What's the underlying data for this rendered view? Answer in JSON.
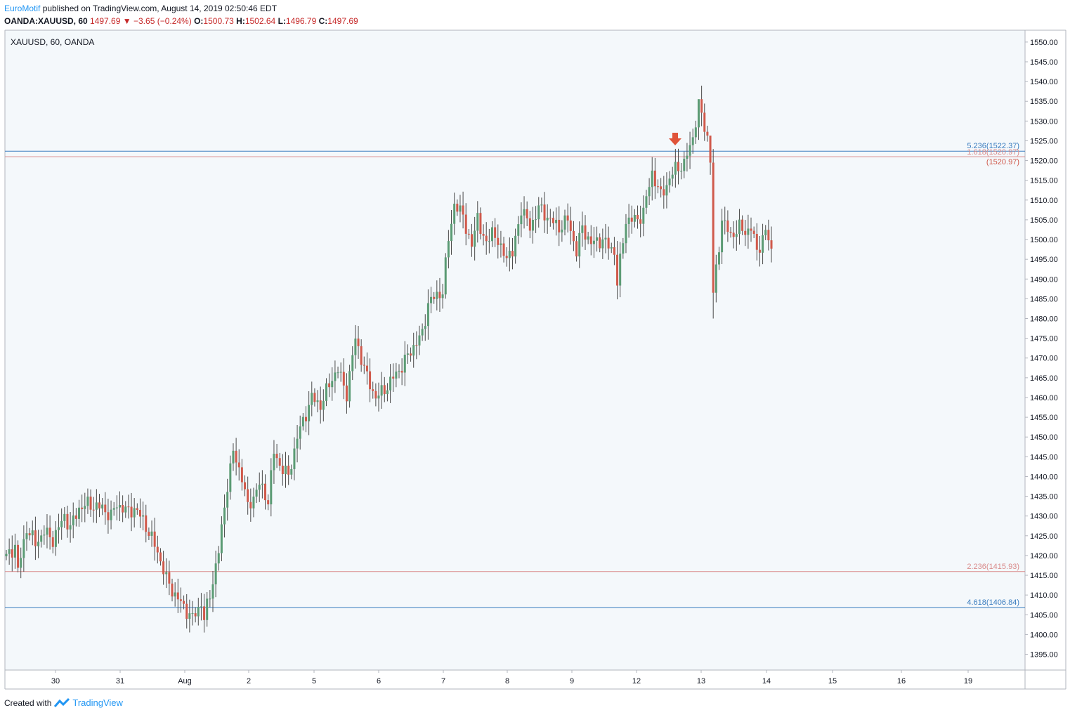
{
  "header": {
    "author": "EuroMotif",
    "published_text": "published on TradingView.com, August 14, 2019 02:50:46 EDT",
    "symbol": "OANDA:XAUUSD, 60",
    "last": "1497.69",
    "change": "−3.65 (−0.24%)",
    "o_label": "O:",
    "o": "1500.73",
    "h_label": "H:",
    "h": "1502.64",
    "l_label": "L:",
    "l": "1496.79",
    "c_label": "C:",
    "c": "1497.69"
  },
  "footer": {
    "created_with": "Created with",
    "brand": "TradingView"
  },
  "colors": {
    "up": "#5b9b74",
    "down": "#d0594b",
    "wick": "#4a4a4a",
    "bg": "#f4f8fb",
    "blue_line": "#3b7dbf",
    "red_line": "#d98b8b",
    "arrow": "#e0543a"
  },
  "chart_data": {
    "type": "candlestick",
    "title": "XAUUSD, 60, OANDA",
    "y_range": [
      1391,
      1553
    ],
    "y_ticks": [
      "1550.00",
      "1545.00",
      "1540.00",
      "1535.00",
      "1530.00",
      "1525.00",
      "1520.00",
      "1515.00",
      "1510.00",
      "1505.00",
      "1500.00",
      "1495.00",
      "1490.00",
      "1485.00",
      "1480.00",
      "1475.00",
      "1470.00",
      "1465.00",
      "1460.00",
      "1455.00",
      "1450.00",
      "1445.00",
      "1440.00",
      "1435.00",
      "1430.00",
      "1425.00",
      "1420.00",
      "1415.00",
      "1410.00",
      "1405.00",
      "1400.00",
      "1395.00"
    ],
    "x_labels": [
      "30",
      "31",
      "Aug",
      "2",
      "5",
      "6",
      "7",
      "8",
      "9",
      "12",
      "13",
      "14",
      "15",
      "16",
      "19"
    ],
    "levels": [
      {
        "label": "5.236(1522.37)",
        "value": 1522.37,
        "color": "blue"
      },
      {
        "label": "1.618(1520.97)",
        "value": 1520.97,
        "color": "red"
      },
      {
        "label": "2.236(1415.93)",
        "value": 1415.93,
        "color": "red"
      },
      {
        "label": "4.618(1406.84)",
        "value": 1406.84,
        "color": "blue"
      }
    ],
    "price_tag": "(1520.97)",
    "anchors": [
      [
        1419.5,
        0
      ],
      [
        1422.5,
        3
      ],
      [
        1416,
        4
      ],
      [
        1427,
        7
      ],
      [
        1423,
        10
      ],
      [
        1426,
        13
      ],
      [
        1424,
        16
      ],
      [
        1430,
        20
      ],
      [
        1427,
        22
      ],
      [
        1432,
        25
      ],
      [
        1433,
        28
      ],
      [
        1432,
        33
      ],
      [
        1430,
        36
      ],
      [
        1433,
        38
      ],
      [
        1431,
        42
      ],
      [
        1432,
        44
      ],
      [
        1429,
        47
      ],
      [
        1421,
        52
      ],
      [
        1414,
        55
      ],
      [
        1410,
        58
      ],
      [
        1404,
        64
      ],
      [
        1408,
        67
      ],
      [
        1404,
        68
      ],
      [
        1410,
        70
      ],
      [
        1421,
        73
      ],
      [
        1438,
        76
      ],
      [
        1446,
        78
      ],
      [
        1440,
        81
      ],
      [
        1432,
        83
      ],
      [
        1438,
        87
      ],
      [
        1434,
        90
      ],
      [
        1446,
        92
      ],
      [
        1443,
        94
      ],
      [
        1440,
        97
      ],
      [
        1450,
        100
      ],
      [
        1460,
        105
      ],
      [
        1458,
        108
      ],
      [
        1465,
        112
      ],
      [
        1467,
        114
      ],
      [
        1461,
        117
      ],
      [
        1475,
        120
      ],
      [
        1465,
        124
      ],
      [
        1460,
        127
      ],
      [
        1462,
        130
      ],
      [
        1465,
        133
      ],
      [
        1468,
        136
      ],
      [
        1473,
        140
      ],
      [
        1476,
        143
      ],
      [
        1484,
        145
      ],
      [
        1487,
        150
      ],
      [
        1500,
        152
      ],
      [
        1509,
        154
      ],
      [
        1506,
        157
      ],
      [
        1498,
        160
      ],
      [
        1506,
        162
      ],
      [
        1498,
        165
      ],
      [
        1503,
        167
      ],
      [
        1497,
        170
      ],
      [
        1496,
        174
      ],
      [
        1508,
        177
      ],
      [
        1503,
        180
      ],
      [
        1508,
        183
      ],
      [
        1505,
        187
      ],
      [
        1503,
        190
      ],
      [
        1505,
        193
      ],
      [
        1497,
        196
      ],
      [
        1503,
        198
      ],
      [
        1499,
        201
      ],
      [
        1500,
        205
      ],
      [
        1499,
        206
      ],
      [
        1497,
        209
      ],
      [
        1489,
        210
      ],
      [
        1505,
        213
      ],
      [
        1505,
        217
      ],
      [
        1507,
        219
      ],
      [
        1517,
        222
      ],
      [
        1511,
        225
      ],
      [
        1514,
        227
      ],
      [
        1518,
        230
      ],
      [
        1519,
        233
      ],
      [
        1526,
        236
      ],
      [
        1534,
        238
      ],
      [
        1526,
        241
      ],
      [
        1520,
        242
      ],
      [
        1486,
        243
      ],
      [
        1505,
        246
      ],
      [
        1501,
        249
      ],
      [
        1503,
        252
      ],
      [
        1502,
        254
      ],
      [
        1503,
        256
      ],
      [
        1497,
        258
      ],
      [
        1502,
        261
      ],
      [
        1497.69,
        263
      ]
    ],
    "candle_count": 264
  }
}
